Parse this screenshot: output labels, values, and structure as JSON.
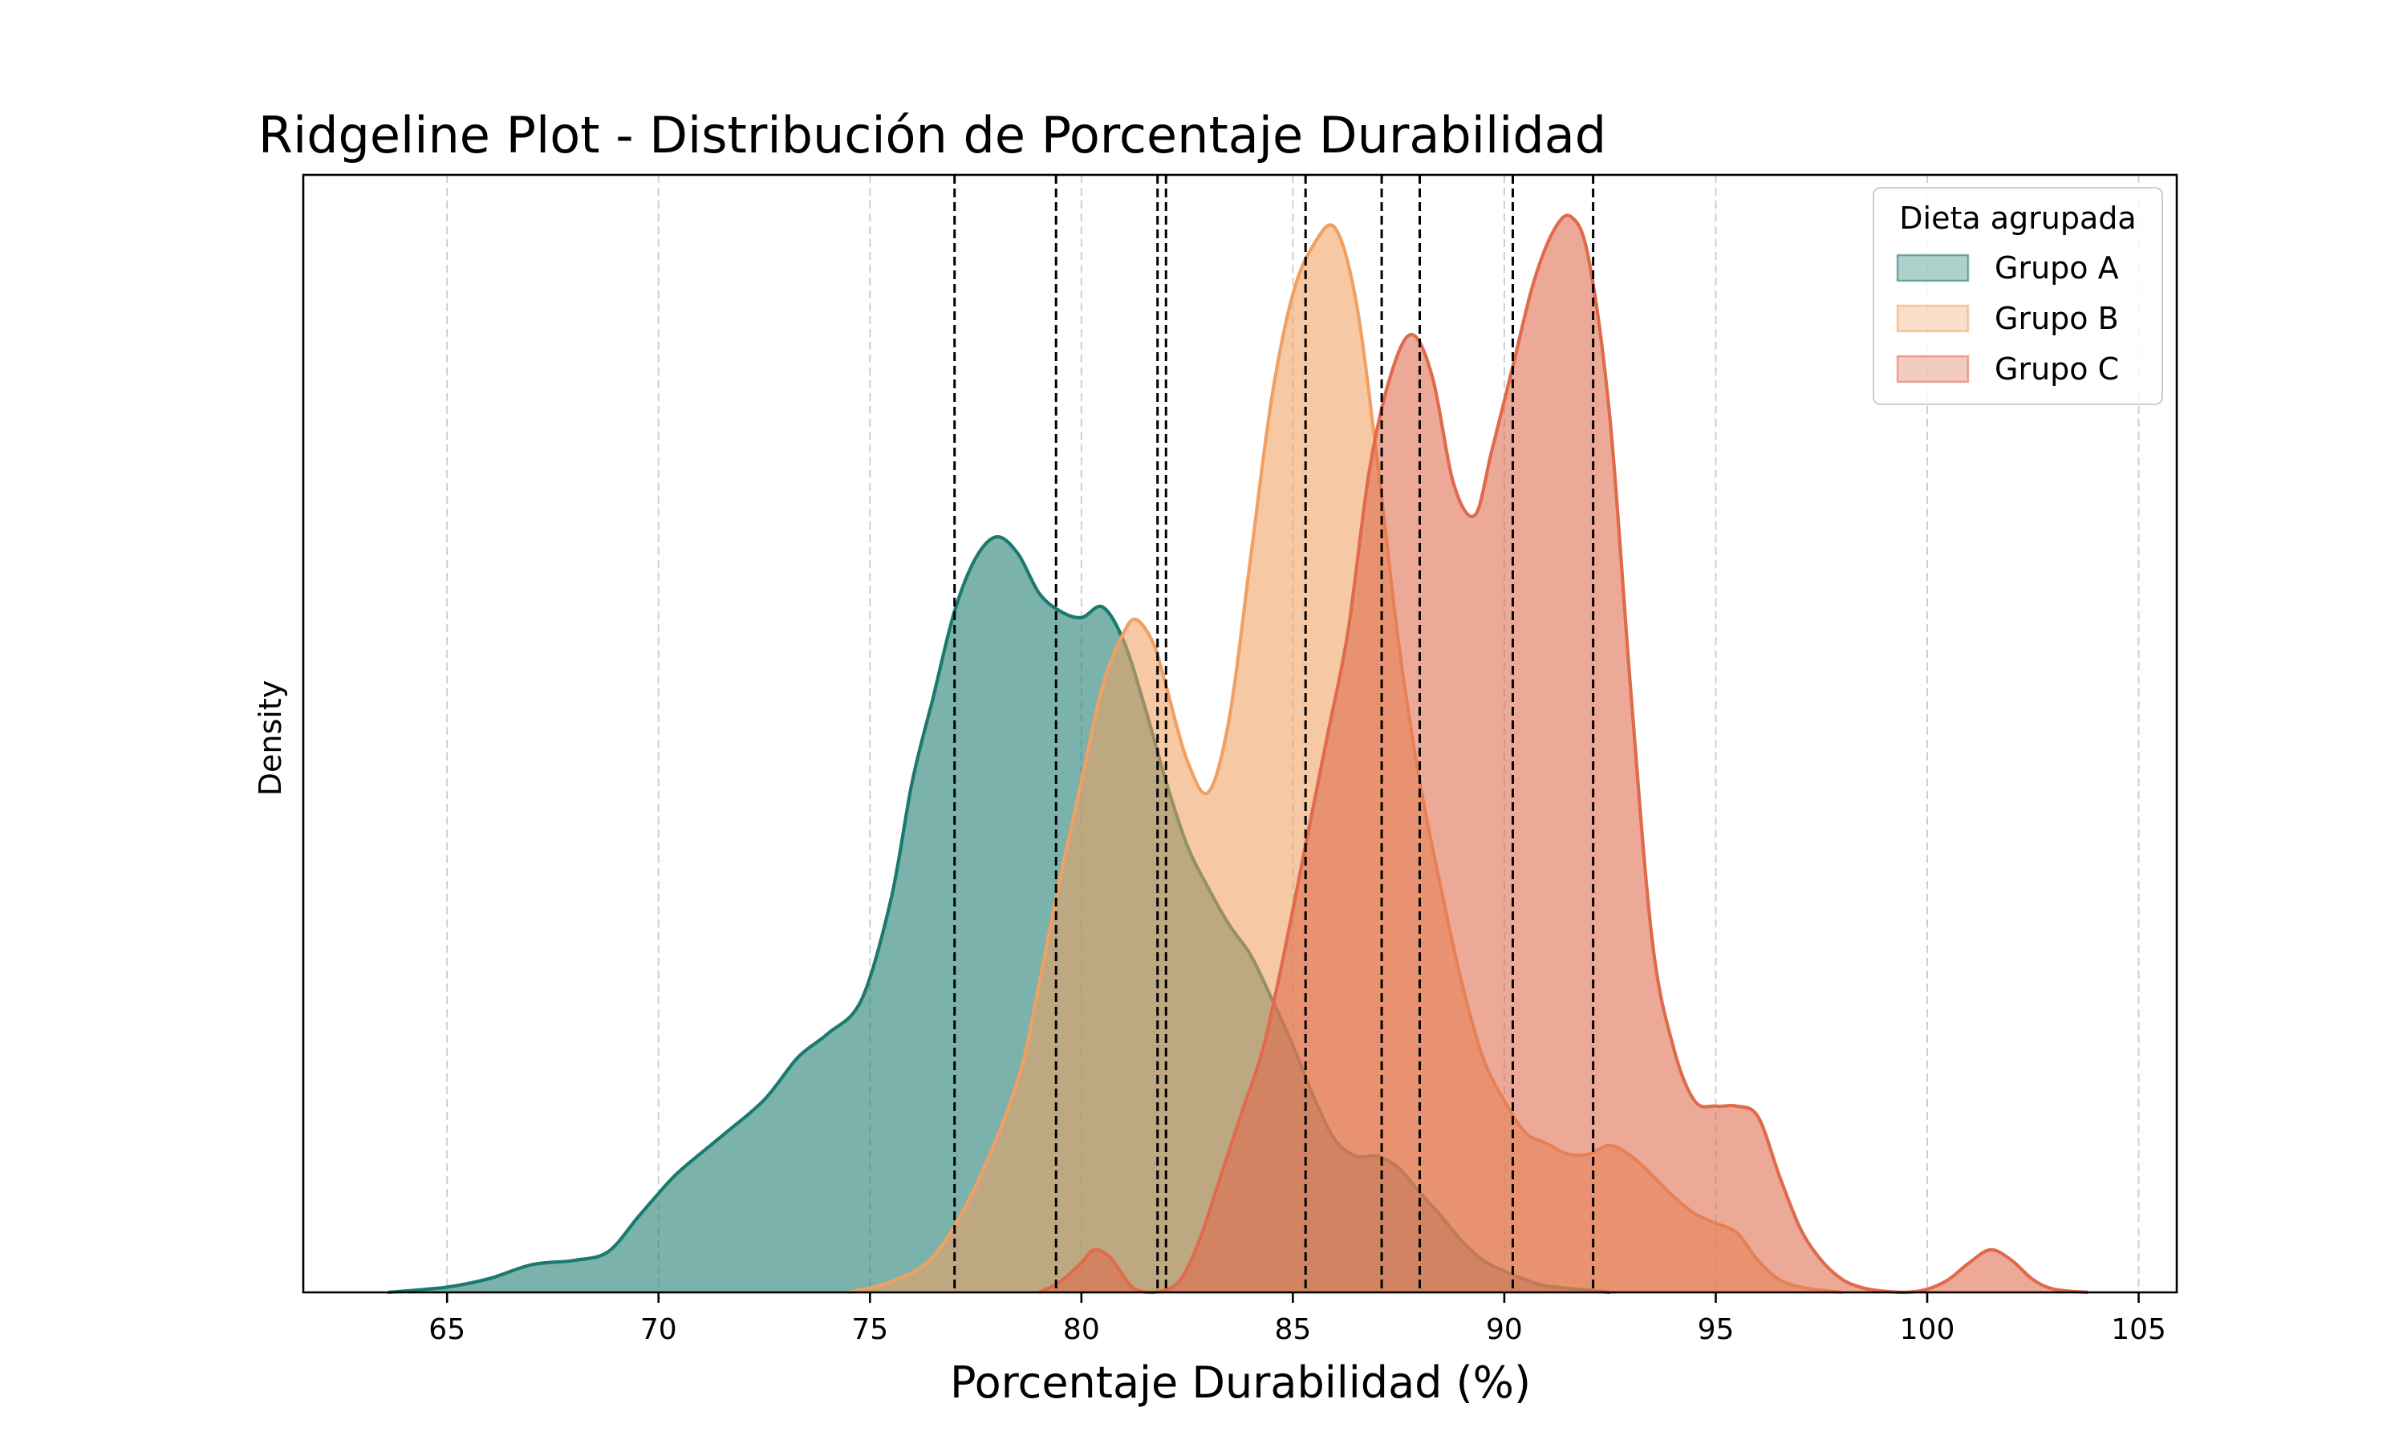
{
  "chart_data": {
    "type": "area",
    "title": "Ridgeline Plot - Distribución de Porcentaje Durabilidad",
    "xlabel": "Porcentaje Durabilidad (%)",
    "ylabel": "Density",
    "xlim": [
      61.6,
      105.9
    ],
    "ylim": [
      0,
      1.05
    ],
    "xticks": [
      65,
      70,
      75,
      80,
      85,
      90,
      95,
      100,
      105
    ],
    "grid": "vertical dashed",
    "legend": {
      "title": "Dieta agrupada",
      "position": "top-right",
      "entries": [
        "Grupo A",
        "Grupo B",
        "Grupo C"
      ]
    },
    "series": [
      {
        "name": "Grupo A",
        "color": "#1b7a6e",
        "fill": "#7ab4ac",
        "x": [
          63.6,
          65.0,
          66.0,
          67.0,
          68.0,
          68.8,
          69.5,
          70.0,
          70.5,
          71.5,
          72.5,
          73.3,
          74.0,
          74.8,
          75.5,
          76.0,
          76.5,
          77.0,
          77.5,
          78.0,
          78.5,
          79.0,
          79.5,
          80.0,
          80.5,
          81.0,
          81.5,
          82.0,
          82.5,
          83.0,
          83.5,
          84.0,
          84.5,
          85.0,
          85.5,
          86.0,
          86.5,
          87.0,
          87.5,
          88.0,
          88.5,
          89.0,
          89.5,
          90.0,
          90.5,
          91.0,
          92.0,
          92.5
        ],
        "y": [
          0.0,
          0.005,
          0.013,
          0.026,
          0.03,
          0.038,
          0.07,
          0.093,
          0.114,
          0.147,
          0.181,
          0.221,
          0.243,
          0.275,
          0.37,
          0.48,
          0.56,
          0.64,
          0.69,
          0.71,
          0.694,
          0.657,
          0.64,
          0.634,
          0.644,
          0.612,
          0.55,
          0.48,
          0.42,
          0.38,
          0.345,
          0.317,
          0.276,
          0.232,
          0.183,
          0.143,
          0.128,
          0.128,
          0.117,
          0.094,
          0.072,
          0.048,
          0.03,
          0.02,
          0.012,
          0.006,
          0.002,
          0.0
        ]
      },
      {
        "name": "Grupo B",
        "color": "#f0a062",
        "fill": "#f5c194",
        "x": [
          74.5,
          75.5,
          76.5,
          77.5,
          78.5,
          79.0,
          79.5,
          80.0,
          80.5,
          81.0,
          81.3,
          81.7,
          82.0,
          82.5,
          83.0,
          83.5,
          84.0,
          84.5,
          85.0,
          85.5,
          86.0,
          86.5,
          87.0,
          87.5,
          88.0,
          88.5,
          89.0,
          89.5,
          90.0,
          90.5,
          91.0,
          91.5,
          92.0,
          92.5,
          93.0,
          93.5,
          94.0,
          94.5,
          95.0,
          95.5,
          96.0,
          96.5,
          97.0,
          97.5,
          98.0
        ],
        "y": [
          0.0,
          0.01,
          0.034,
          0.1,
          0.2,
          0.29,
          0.39,
          0.48,
          0.57,
          0.62,
          0.632,
          0.61,
          0.57,
          0.5,
          0.47,
          0.54,
          0.69,
          0.84,
          0.938,
          0.985,
          1.0,
          0.93,
          0.78,
          0.61,
          0.48,
          0.38,
          0.29,
          0.22,
          0.18,
          0.15,
          0.14,
          0.13,
          0.13,
          0.138,
          0.128,
          0.11,
          0.09,
          0.074,
          0.065,
          0.056,
          0.03,
          0.012,
          0.005,
          0.002,
          0.0
        ]
      },
      {
        "name": "Grupo C",
        "color": "#e06a4c",
        "fill": "#eea08b",
        "x": [
          79.0,
          79.5,
          80.0,
          80.3,
          80.7,
          81.2,
          81.7,
          82.3,
          82.8,
          83.3,
          83.8,
          84.3,
          84.8,
          85.3,
          85.8,
          86.3,
          86.8,
          87.3,
          87.8,
          88.3,
          88.8,
          89.3,
          89.7,
          90.2,
          90.7,
          91.2,
          91.6,
          92.0,
          92.5,
          93.0,
          93.5,
          94.0,
          94.5,
          95.0,
          95.5,
          96.0,
          96.5,
          97.0,
          97.5,
          98.0,
          98.5,
          99.0,
          99.5,
          100.0,
          100.5,
          101.0,
          101.5,
          102.0,
          102.5,
          103.0,
          103.8
        ],
        "y": [
          0.0,
          0.01,
          0.028,
          0.04,
          0.032,
          0.005,
          0.0,
          0.01,
          0.05,
          0.11,
          0.17,
          0.23,
          0.32,
          0.42,
          0.52,
          0.62,
          0.77,
          0.86,
          0.9,
          0.86,
          0.76,
          0.73,
          0.79,
          0.87,
          0.95,
          1.0,
          1.01,
          0.97,
          0.82,
          0.56,
          0.33,
          0.23,
          0.18,
          0.175,
          0.175,
          0.165,
          0.11,
          0.06,
          0.03,
          0.012,
          0.004,
          0.001,
          0.0,
          0.003,
          0.012,
          0.028,
          0.04,
          0.03,
          0.012,
          0.003,
          0.0
        ]
      }
    ],
    "vlines": [
      77.0,
      79.4,
      81.8,
      82.0,
      85.3,
      87.1,
      88.0,
      90.2,
      92.1
    ]
  }
}
